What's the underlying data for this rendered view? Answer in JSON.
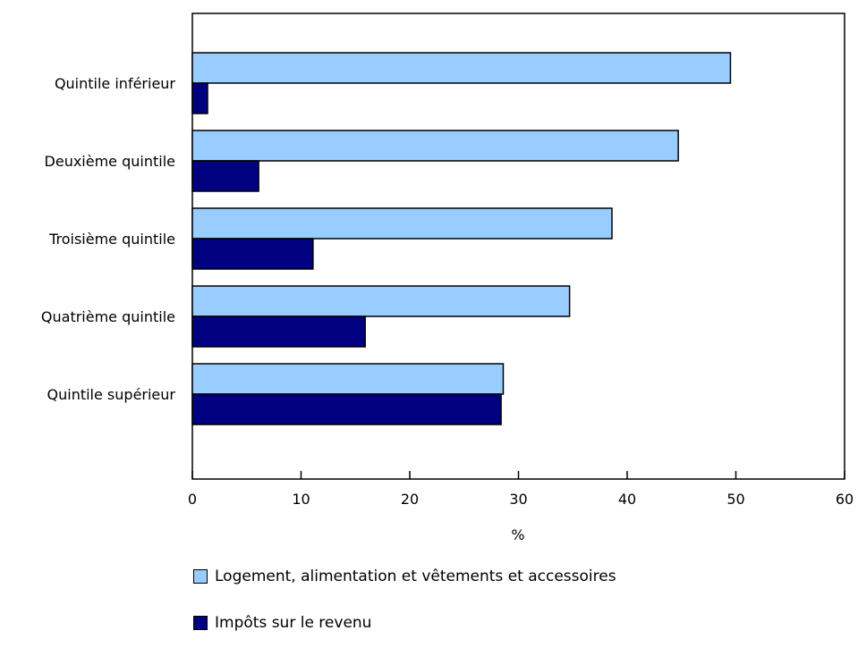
{
  "chart_data": {
    "type": "bar",
    "orientation": "horizontal",
    "categories": [
      "Quintile inférieur",
      "Deuxième quintile",
      "Troisième quintile",
      "Quatrième quintile",
      "Quintile supérieur"
    ],
    "series": [
      {
        "name": "Logement, alimentation et vêtements et accessoires",
        "color": "#99ccff",
        "values": [
          49.5,
          44.7,
          38.6,
          34.7,
          28.6
        ]
      },
      {
        "name": "Impôts sur le revenu",
        "color": "#000080",
        "values": [
          1.4,
          6.1,
          11.1,
          15.9,
          28.4
        ]
      }
    ],
    "xlabel": "%",
    "xlim": [
      0,
      60
    ],
    "xticks": [
      "0",
      "10",
      "20",
      "30",
      "40",
      "50",
      "60"
    ],
    "grid": false,
    "legend_position": "bottom"
  }
}
